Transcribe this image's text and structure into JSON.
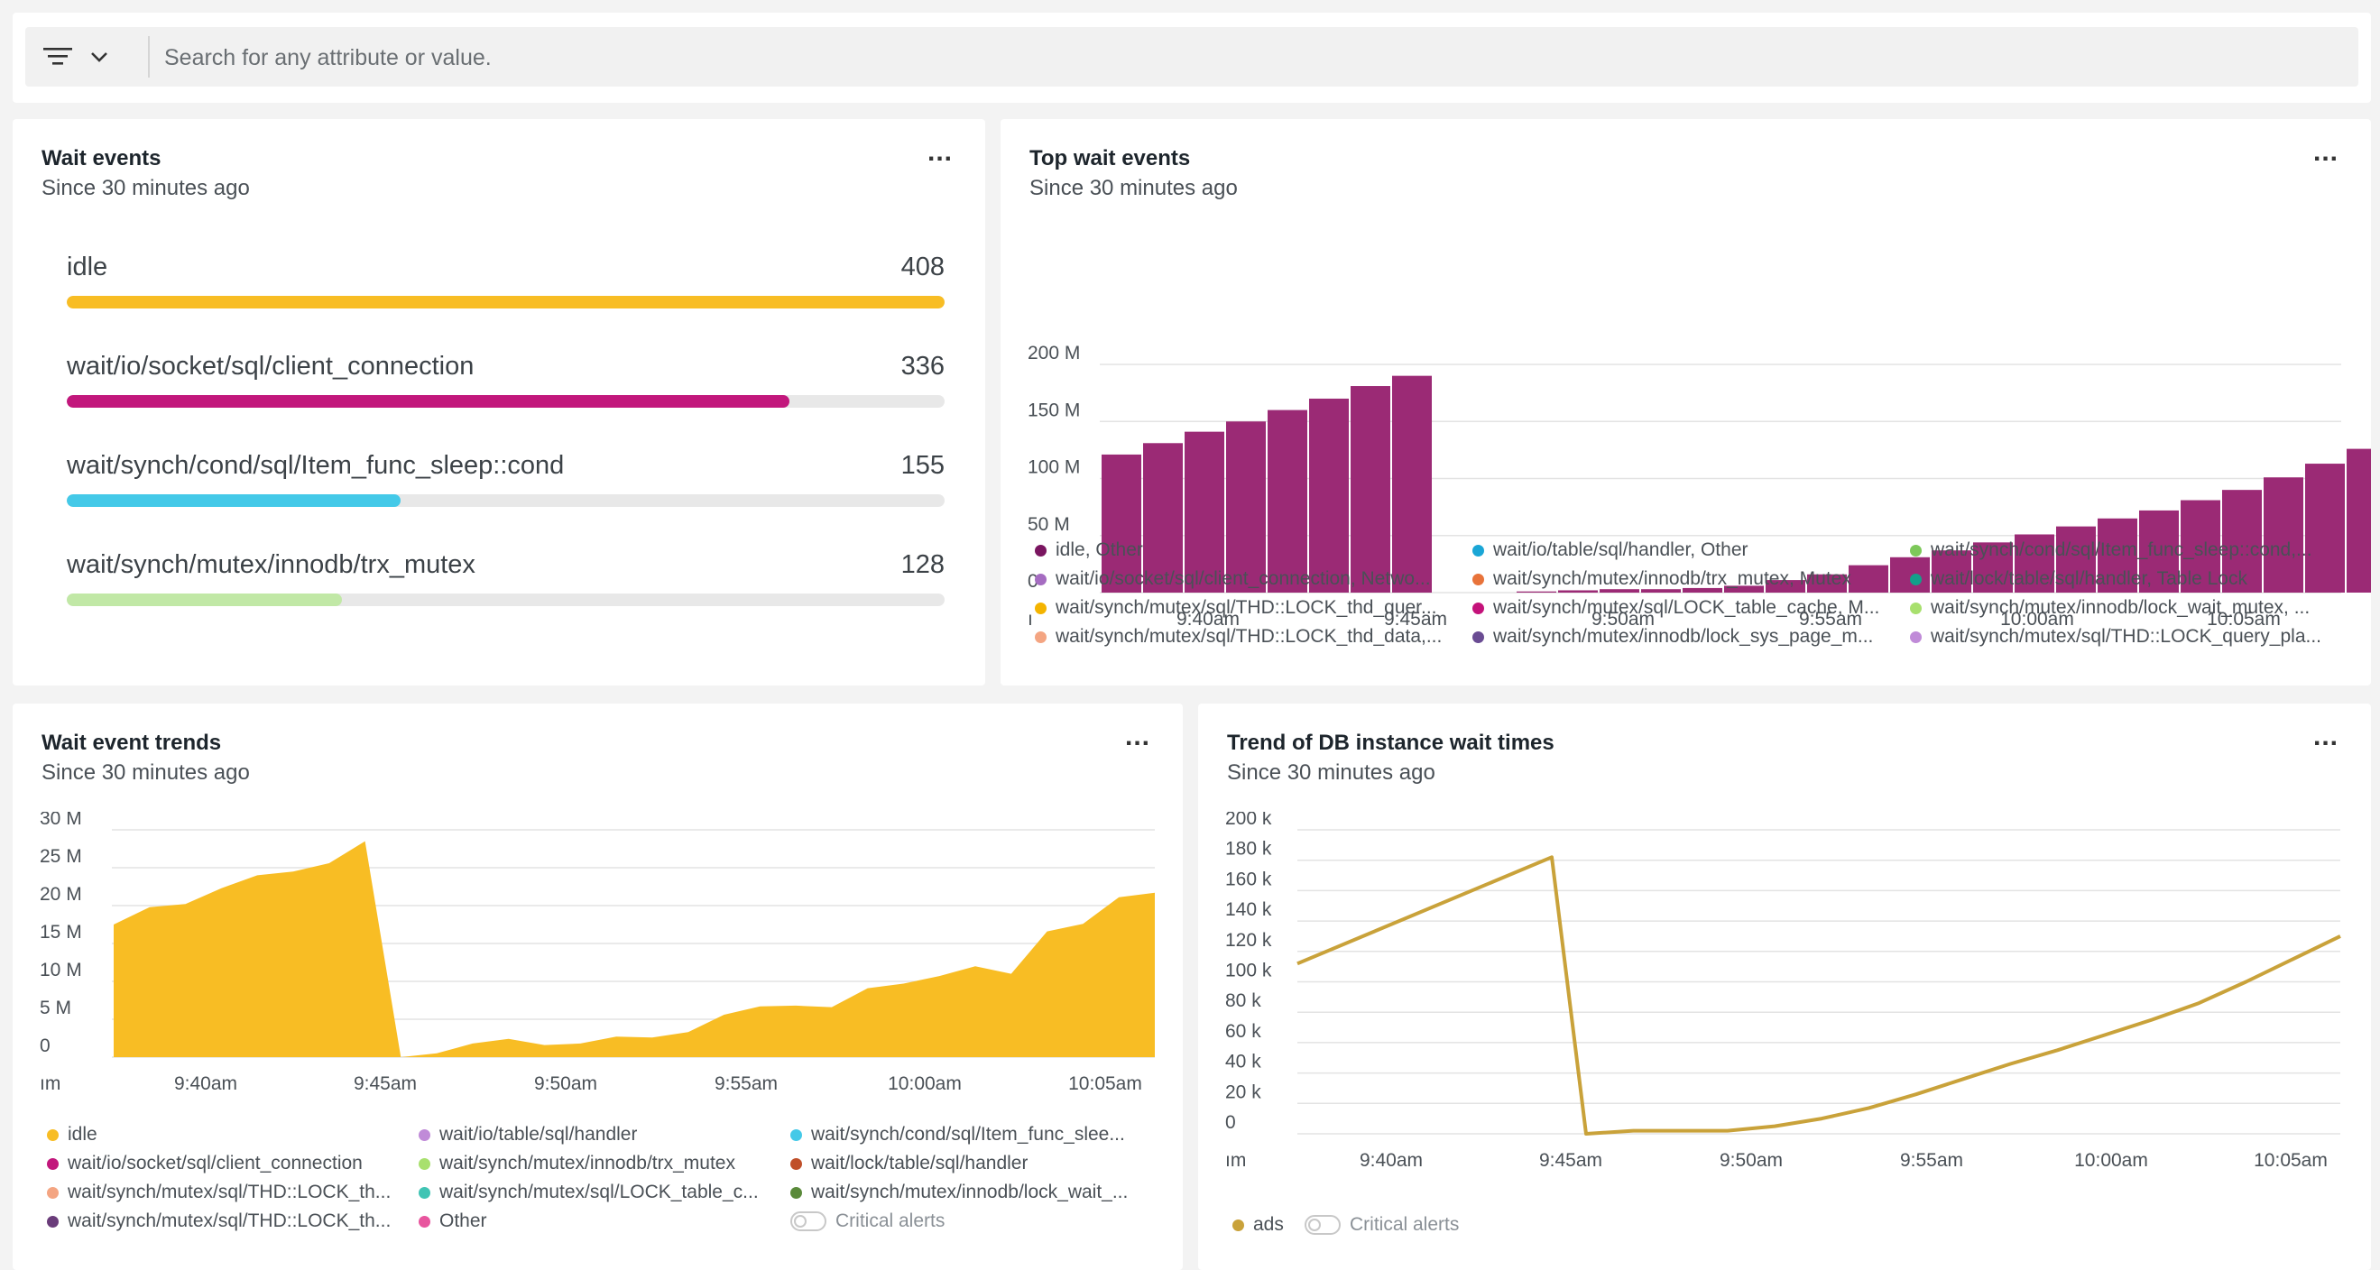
{
  "filter": {
    "placeholder": "Search for any attribute or value."
  },
  "colors": {
    "idle": "#f8bd24",
    "client_connection": "#c2177c",
    "cond_sleep": "#44c9e8",
    "trx_mutex": "#c1e8a6",
    "purple": "#9b2a75",
    "ads": "#c9a23a"
  },
  "wait_events": {
    "title": "Wait events",
    "subtitle": "Since 30 minutes ago",
    "more": "...",
    "items": [
      {
        "label": "idle",
        "value": "408",
        "num": 408,
        "color": "#f8bd24"
      },
      {
        "label": "wait/io/socket/sql/client_connection",
        "value": "336",
        "num": 336,
        "color": "#c2177c"
      },
      {
        "label": "wait/synch/cond/sql/Item_func_sleep::cond",
        "value": "155",
        "num": 155,
        "color": "#44c9e8"
      },
      {
        "label": "wait/synch/mutex/innodb/trx_mutex",
        "value": "128",
        "num": 128,
        "color": "#c1e8a6"
      }
    ]
  },
  "top_wait_events": {
    "title": "Top wait events",
    "subtitle": "Since 30 minutes ago",
    "more": "...",
    "legend": [
      {
        "label": "idle, Other",
        "color": "#7a1560"
      },
      {
        "label": "wait/io/table/sql/handler, Other",
        "color": "#1aa6d6"
      },
      {
        "label": "wait/synch/cond/sql/Item_func_sleep::cond,...",
        "color": "#7dc85a"
      },
      {
        "label": "wait/io/socket/sql/client_connection, Netwo...",
        "color": "#a56cc1"
      },
      {
        "label": "wait/synch/mutex/innodb/trx_mutex, Mutex",
        "color": "#e8733a"
      },
      {
        "label": "wait/lock/table/sql/handler, Table Lock",
        "color": "#12a08a"
      },
      {
        "label": "wait/synch/mutex/sql/THD::LOCK_thd_quer...",
        "color": "#f4b400"
      },
      {
        "label": "wait/synch/mutex/sql/LOCK_table_cache, M...",
        "color": "#c4127a"
      },
      {
        "label": "wait/synch/mutex/innodb/lock_wait_mutex, ...",
        "color": "#a8e06e"
      },
      {
        "label": "wait/synch/mutex/sql/THD::LOCK_thd_data,...",
        "color": "#f4a582"
      },
      {
        "label": "wait/synch/mutex/innodb/lock_sys_page_m...",
        "color": "#6a4c93"
      },
      {
        "label": "wait/synch/mutex/sql/THD::LOCK_query_pla...",
        "color": "#c08bd8"
      }
    ]
  },
  "wait_event_trends": {
    "title": "Wait event trends",
    "subtitle": "Since 30 minutes ago",
    "more": "...",
    "legend": [
      {
        "label": "idle",
        "color": "#f8bd24"
      },
      {
        "label": "wait/io/table/sql/handler",
        "color": "#c08bd8"
      },
      {
        "label": "wait/synch/cond/sql/Item_func_slee...",
        "color": "#44c9e8"
      },
      {
        "label": "wait/io/socket/sql/client_connection",
        "color": "#c2177c"
      },
      {
        "label": "wait/synch/mutex/innodb/trx_mutex",
        "color": "#a8e06e"
      },
      {
        "label": "wait/lock/table/sql/handler",
        "color": "#c0502a"
      },
      {
        "label": "wait/synch/mutex/sql/THD::LOCK_th...",
        "color": "#f4a582"
      },
      {
        "label": "wait/synch/mutex/sql/LOCK_table_c...",
        "color": "#40c4b4"
      },
      {
        "label": "wait/synch/mutex/innodb/lock_wait_...",
        "color": "#5a8a3a"
      },
      {
        "label": "wait/synch/mutex/sql/THD::LOCK_th...",
        "color": "#6a3c7a"
      },
      {
        "label": "Other",
        "color": "#e8559e"
      },
      {
        "label": "Critical alerts",
        "toggle": true
      }
    ]
  },
  "db_wait_times": {
    "title": "Trend of DB instance wait times",
    "subtitle": "Since 30 minutes ago",
    "more": "...",
    "legend": [
      {
        "label": "ads",
        "color": "#c9a23a"
      },
      {
        "label": "Critical alerts",
        "toggle": true
      }
    ]
  },
  "chart_data": [
    {
      "type": "bar",
      "title": "Top wait events",
      "x_tick_labels": [
        "9:40am",
        "9:45am",
        "9:50am",
        "9:55am",
        "10:00am",
        "10:05am"
      ],
      "x_edge_label": "ı",
      "y_tick_labels": [
        "0",
        "50 M",
        "100 M",
        "150 M",
        "200 M"
      ],
      "ylim": [
        0,
        200
      ],
      "y_unit": "M",
      "series": [
        {
          "values": [
            121,
            131,
            141,
            150,
            160,
            170,
            181,
            190,
            0,
            0,
            1,
            2,
            3,
            3,
            4,
            6,
            11,
            16,
            24,
            31,
            37,
            44,
            51,
            58,
            65,
            72,
            81,
            90,
            101,
            113,
            126,
            139,
            150
          ]
        }
      ],
      "color": "#9b2a75"
    },
    {
      "type": "area",
      "title": "Wait event trends",
      "x_tick_labels": [
        "9:40am",
        "9:45am",
        "9:50am",
        "9:55am",
        "10:00am",
        "10:05am"
      ],
      "x_edge_label": "ım",
      "y_tick_labels": [
        "0",
        "5 M",
        "10 M",
        "15 M",
        "20 M",
        "25 M",
        "30 M"
      ],
      "ylim": [
        0,
        30
      ],
      "y_unit": "M",
      "series": [
        {
          "name": "idle",
          "values": [
            17.5,
            19.8,
            20.2,
            22.3,
            24.0,
            24.5,
            25.6,
            28.5,
            0,
            0.5,
            1.8,
            2.4,
            1.6,
            1.8,
            2.7,
            2.6,
            3.3,
            5.6,
            6.7,
            6.8,
            6.6,
            9.1,
            9.7,
            10.7,
            12.0,
            11.0,
            16.6,
            17.6,
            21.1,
            21.7
          ]
        }
      ],
      "color": "#f8bd24"
    },
    {
      "type": "line",
      "title": "Trend of DB instance wait times",
      "x_tick_labels": [
        "9:40am",
        "9:45am",
        "9:50am",
        "9:55am",
        "10:00am",
        "10:05am"
      ],
      "x_edge_label": "ım",
      "y_tick_labels": [
        "0",
        "20 k",
        "40 k",
        "60 k",
        "80 k",
        "100 k",
        "120 k",
        "140 k",
        "160 k",
        "180 k",
        "200 k"
      ],
      "ylim": [
        0,
        200
      ],
      "y_unit": "k",
      "series": [
        {
          "name": "ads",
          "values": [
            112,
            182,
            0,
            2,
            2,
            2,
            5,
            10,
            17,
            26,
            36,
            46,
            55,
            65,
            75,
            86,
            100,
            115,
            130
          ]
        }
      ],
      "color": "#c9a23a"
    }
  ]
}
